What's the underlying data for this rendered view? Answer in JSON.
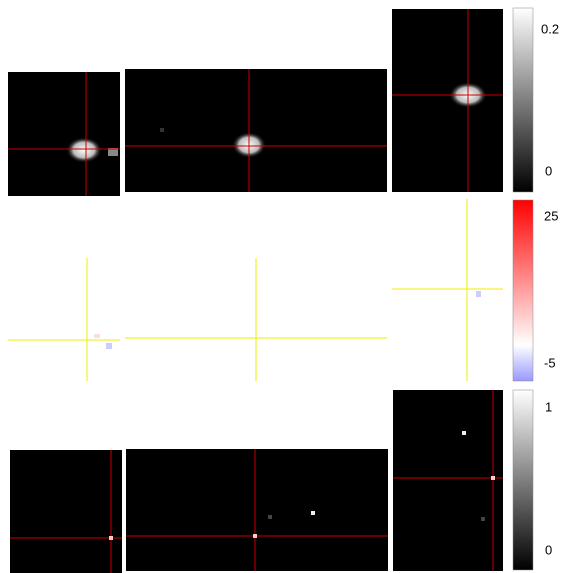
{
  "rows": [
    {
      "colorbar": {
        "ticks": [
          "0.2",
          "0"
        ]
      }
    },
    {
      "colorbar": {
        "ticks": [
          "25",
          "-5"
        ]
      }
    },
    {
      "colorbar": {
        "ticks": [
          "1",
          "0"
        ]
      }
    }
  ]
}
